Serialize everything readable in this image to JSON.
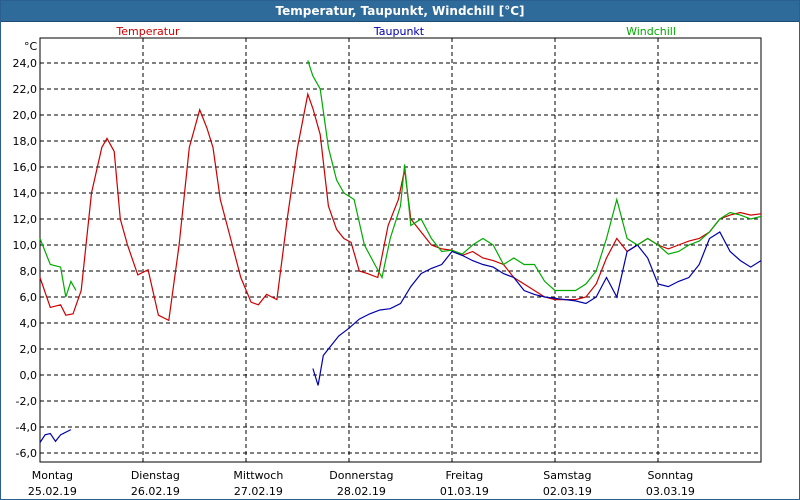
{
  "window": {
    "title": "Temperatur, Taupunkt, Windchill [°C]"
  },
  "chart_data": {
    "type": "line",
    "title": "Temperatur, Taupunkt, Windchill [°C]",
    "ylabel": "°C",
    "ylim": [
      -7,
      27
    ],
    "yticks": [
      "24,0",
      "22,0",
      "20,0",
      "18,0",
      "16,0",
      "14,0",
      "12,0",
      "10,0",
      "8,0",
      "6,0",
      "4,0",
      "2,0",
      "0,0",
      "-2,0",
      "-4,0",
      "-6,0"
    ],
    "ytick_values": [
      24,
      22,
      20,
      18,
      16,
      14,
      12,
      10,
      8,
      6,
      4,
      2,
      0,
      -2,
      -4,
      -6
    ],
    "xlim": [
      0,
      7
    ],
    "xlabel": "",
    "x_day_labels": [
      {
        "day": "Montag",
        "date": "25.02.19"
      },
      {
        "day": "Dienstag",
        "date": "26.02.19"
      },
      {
        "day": "Mittwoch",
        "date": "27.02.19"
      },
      {
        "day": "Donnerstag",
        "date": "28.02.19"
      },
      {
        "day": "Freitag",
        "date": "01.03.19"
      },
      {
        "day": "Samstag",
        "date": "02.03.19"
      },
      {
        "day": "Sonntag",
        "date": "03.03.19"
      }
    ],
    "grid": true,
    "legend": [
      "Temperatur",
      "Taupunkt",
      "Windchill"
    ],
    "series": [
      {
        "name": "Temperatur",
        "color": "#cc0000",
        "points": [
          [
            0.0,
            7.5
          ],
          [
            0.1,
            5.2
          ],
          [
            0.2,
            5.4
          ],
          [
            0.25,
            4.6
          ],
          [
            0.32,
            4.7
          ],
          [
            0.4,
            6.5
          ],
          [
            0.5,
            14.0
          ],
          [
            0.6,
            17.5
          ],
          [
            0.65,
            18.2
          ],
          [
            0.72,
            17.2
          ],
          [
            0.78,
            12.0
          ],
          [
            0.85,
            10.0
          ],
          [
            0.95,
            7.7
          ],
          [
            1.05,
            8.1
          ],
          [
            1.15,
            4.6
          ],
          [
            1.25,
            4.2
          ],
          [
            1.35,
            10.0
          ],
          [
            1.45,
            17.5
          ],
          [
            1.55,
            20.4
          ],
          [
            1.62,
            19.0
          ],
          [
            1.68,
            17.5
          ],
          [
            1.75,
            13.5
          ],
          [
            1.85,
            10.5
          ],
          [
            1.95,
            7.5
          ],
          [
            2.05,
            5.6
          ],
          [
            2.12,
            5.4
          ],
          [
            2.2,
            6.2
          ],
          [
            2.3,
            5.8
          ],
          [
            2.4,
            12.0
          ],
          [
            2.5,
            17.5
          ],
          [
            2.6,
            21.6
          ],
          [
            2.65,
            20.5
          ],
          [
            2.72,
            18.5
          ],
          [
            2.8,
            13.0
          ],
          [
            2.88,
            11.2
          ],
          [
            2.95,
            10.5
          ],
          [
            3.02,
            10.2
          ],
          [
            3.1,
            8.0
          ],
          [
            3.18,
            7.8
          ],
          [
            3.28,
            7.5
          ],
          [
            3.38,
            11.5
          ],
          [
            3.48,
            13.5
          ],
          [
            3.54,
            15.8
          ],
          [
            3.6,
            12.0
          ],
          [
            3.7,
            11.0
          ],
          [
            3.8,
            10.0
          ],
          [
            3.9,
            9.7
          ],
          [
            4.0,
            9.6
          ],
          [
            4.1,
            9.2
          ],
          [
            4.2,
            9.5
          ],
          [
            4.3,
            9.0
          ],
          [
            4.4,
            8.8
          ],
          [
            4.5,
            8.5
          ],
          [
            4.6,
            7.5
          ],
          [
            4.7,
            7.0
          ],
          [
            4.8,
            6.5
          ],
          [
            4.9,
            6.0
          ],
          [
            5.0,
            5.8
          ],
          [
            5.1,
            5.8
          ],
          [
            5.2,
            5.8
          ],
          [
            5.3,
            6.0
          ],
          [
            5.4,
            7.0
          ],
          [
            5.5,
            9.0
          ],
          [
            5.6,
            10.5
          ],
          [
            5.7,
            9.5
          ],
          [
            5.8,
            10.0
          ],
          [
            5.9,
            10.5
          ],
          [
            6.0,
            10.0
          ],
          [
            6.1,
            9.7
          ],
          [
            6.2,
            10.0
          ],
          [
            6.3,
            10.3
          ],
          [
            6.4,
            10.5
          ],
          [
            6.5,
            11.0
          ],
          [
            6.6,
            12.0
          ],
          [
            6.7,
            12.3
          ],
          [
            6.8,
            12.5
          ],
          [
            6.9,
            12.3
          ],
          [
            7.0,
            12.4
          ]
        ]
      },
      {
        "name": "Taupunkt",
        "color": "#0000aa",
        "points": [
          [
            0.0,
            -5.2
          ],
          [
            0.05,
            -4.6
          ],
          [
            0.1,
            -4.5
          ],
          [
            0.15,
            -5.1
          ],
          [
            0.2,
            -4.6
          ],
          [
            0.3,
            -4.2
          ],
          [
            2.65,
            0.5
          ],
          [
            2.7,
            -0.8
          ],
          [
            2.75,
            1.5
          ],
          [
            2.8,
            2.0
          ],
          [
            2.9,
            3.0
          ],
          [
            3.0,
            3.6
          ],
          [
            3.1,
            4.3
          ],
          [
            3.2,
            4.7
          ],
          [
            3.3,
            5.0
          ],
          [
            3.4,
            5.1
          ],
          [
            3.5,
            5.5
          ],
          [
            3.6,
            6.8
          ],
          [
            3.7,
            7.8
          ],
          [
            3.8,
            8.2
          ],
          [
            3.9,
            8.5
          ],
          [
            4.0,
            9.5
          ],
          [
            4.1,
            9.2
          ],
          [
            4.2,
            8.8
          ],
          [
            4.3,
            8.5
          ],
          [
            4.4,
            8.3
          ],
          [
            4.5,
            7.8
          ],
          [
            4.6,
            7.5
          ],
          [
            4.7,
            6.5
          ],
          [
            4.8,
            6.2
          ],
          [
            4.9,
            6.0
          ],
          [
            5.0,
            5.9
          ],
          [
            5.1,
            5.8
          ],
          [
            5.2,
            5.7
          ],
          [
            5.3,
            5.5
          ],
          [
            5.4,
            6.0
          ],
          [
            5.5,
            7.5
          ],
          [
            5.6,
            6.0
          ],
          [
            5.7,
            9.5
          ],
          [
            5.8,
            10.0
          ],
          [
            5.9,
            9.0
          ],
          [
            6.0,
            7.0
          ],
          [
            6.1,
            6.8
          ],
          [
            6.2,
            7.2
          ],
          [
            6.3,
            7.5
          ],
          [
            6.4,
            8.5
          ],
          [
            6.5,
            10.5
          ],
          [
            6.6,
            11.0
          ],
          [
            6.7,
            9.5
          ],
          [
            6.8,
            8.8
          ],
          [
            6.9,
            8.3
          ],
          [
            7.0,
            8.8
          ]
        ]
      },
      {
        "name": "Windchill",
        "color": "#00aa00",
        "points": [
          [
            0.0,
            10.5
          ],
          [
            0.1,
            8.5
          ],
          [
            0.2,
            8.3
          ],
          [
            0.25,
            6.0
          ],
          [
            0.3,
            7.2
          ],
          [
            0.35,
            6.5
          ],
          [
            2.6,
            24.2
          ],
          [
            2.65,
            23.0
          ],
          [
            2.72,
            22.0
          ],
          [
            2.8,
            17.5
          ],
          [
            2.88,
            15.0
          ],
          [
            2.95,
            14.0
          ],
          [
            3.05,
            13.5
          ],
          [
            3.15,
            10.0
          ],
          [
            3.25,
            8.5
          ],
          [
            3.32,
            7.5
          ],
          [
            3.4,
            10.5
          ],
          [
            3.5,
            13.0
          ],
          [
            3.54,
            16.2
          ],
          [
            3.6,
            11.5
          ],
          [
            3.7,
            12.0
          ],
          [
            3.8,
            10.5
          ],
          [
            3.9,
            9.5
          ],
          [
            4.0,
            9.6
          ],
          [
            4.1,
            9.3
          ],
          [
            4.2,
            10.0
          ],
          [
            4.3,
            10.5
          ],
          [
            4.4,
            10.0
          ],
          [
            4.5,
            8.5
          ],
          [
            4.6,
            9.0
          ],
          [
            4.7,
            8.5
          ],
          [
            4.8,
            8.5
          ],
          [
            4.9,
            7.2
          ],
          [
            5.0,
            6.5
          ],
          [
            5.1,
            6.5
          ],
          [
            5.2,
            6.5
          ],
          [
            5.3,
            7.0
          ],
          [
            5.4,
            8.0
          ],
          [
            5.5,
            10.5
          ],
          [
            5.6,
            13.5
          ],
          [
            5.7,
            10.5
          ],
          [
            5.8,
            10.0
          ],
          [
            5.9,
            10.5
          ],
          [
            6.0,
            10.0
          ],
          [
            6.1,
            9.3
          ],
          [
            6.2,
            9.5
          ],
          [
            6.3,
            10.0
          ],
          [
            6.4,
            10.3
          ],
          [
            6.5,
            11.0
          ],
          [
            6.6,
            12.0
          ],
          [
            6.7,
            12.5
          ],
          [
            6.8,
            12.3
          ],
          [
            6.9,
            12.0
          ],
          [
            7.0,
            12.2
          ]
        ]
      }
    ]
  }
}
